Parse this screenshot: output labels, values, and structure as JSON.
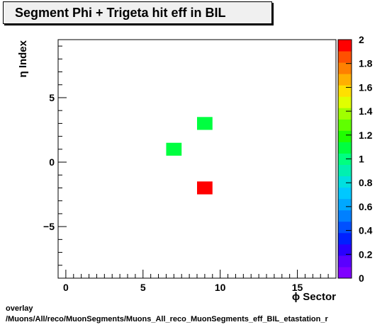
{
  "chart_data": {
    "type": "heatmap",
    "title": "Segment Phi + Trigeta hit eff in BIL",
    "xlabel": "ϕ Sector",
    "ylabel": "η Index",
    "xlim": [
      -0.5,
      17.5
    ],
    "ylim": [
      -9,
      9.5
    ],
    "x_ticks": [
      0,
      5,
      10,
      15
    ],
    "x_tick_labels": [
      "0",
      "5",
      "10",
      "15"
    ],
    "y_ticks": [
      -5,
      0,
      5
    ],
    "y_tick_labels": [
      "−5",
      "0",
      "5"
    ],
    "zlim": [
      0,
      2
    ],
    "z_ticks": [
      0,
      0.2,
      0.4,
      0.6,
      0.8,
      1,
      1.2,
      1.4,
      1.6,
      1.8,
      2
    ],
    "z_tick_labels": [
      "0",
      "0.2",
      "0.4",
      "0.6",
      "0.8",
      "1",
      "1.2",
      "1.4",
      "1.6",
      "1.8",
      "2"
    ],
    "cells": [
      {
        "x": 9,
        "y": 3,
        "value": 1.1
      },
      {
        "x": 7,
        "y": 1,
        "value": 1.1
      },
      {
        "x": 9,
        "y": -2,
        "value": 2.0
      }
    ],
    "palette": [
      "#7f00ff",
      "#5a00ff",
      "#2a00ff",
      "#0020ff",
      "#0050ff",
      "#0080ff",
      "#00a8ff",
      "#00c8ff",
      "#00e0e0",
      "#00f0b0",
      "#00ff80",
      "#00ff40",
      "#20ff00",
      "#60ff00",
      "#a0ff00",
      "#e0ff00",
      "#ffe000",
      "#ffb000",
      "#ff8000",
      "#ff5000",
      "#ff0000"
    ]
  },
  "footer": {
    "line1": "overlay",
    "line2": "/Muons/All/reco/MuonSegments/Muons_All_reco_MuonSegments_eff_BIL_etastation_r"
  }
}
